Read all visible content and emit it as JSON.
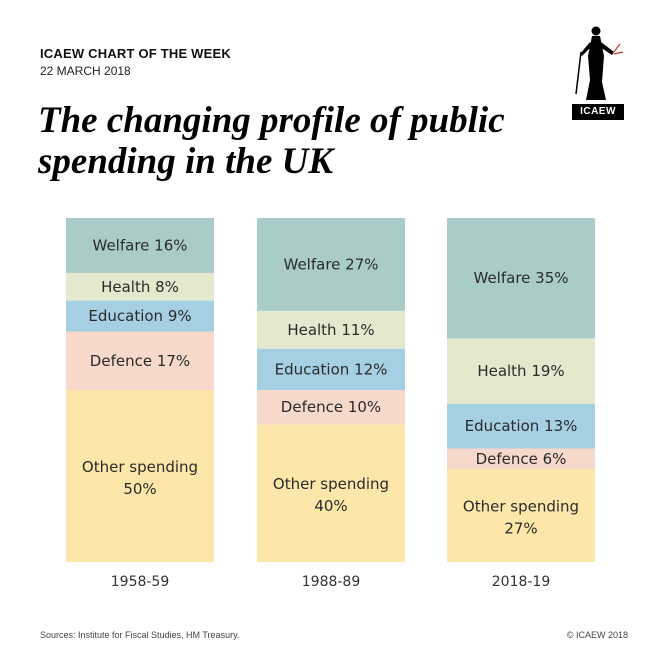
{
  "header": {
    "kicker": "ICAEW CHART OF THE WEEK",
    "date": "22 MARCH 2018",
    "title": "The changing profile of public spending in the UK"
  },
  "logo": {
    "text": "ICAEW",
    "icon": "justice-figure-icon"
  },
  "footer": {
    "source": "Sources: Institute for Fiscal Studies, HM Treasury.",
    "copyright": "© ICAEW 2018"
  },
  "colors": {
    "Welfare": "#a9cccb",
    "Health": "#e4e8cd",
    "Education": "#a5cfe3",
    "Defence": "#f6d9cb",
    "Other spending": "#fde6aa"
  },
  "chart_data": {
    "type": "bar",
    "stacked": true,
    "categories": [
      "1958-59",
      "1988-89",
      "2018-19"
    ],
    "series": [
      {
        "name": "Other spending",
        "values": [
          50,
          40,
          27
        ]
      },
      {
        "name": "Defence",
        "values": [
          17,
          10,
          6
        ]
      },
      {
        "name": "Education",
        "values": [
          9,
          12,
          13
        ]
      },
      {
        "name": "Health",
        "values": [
          8,
          11,
          19
        ]
      },
      {
        "name": "Welfare",
        "values": [
          16,
          27,
          35
        ]
      }
    ],
    "ylim": [
      0,
      100
    ],
    "grid": false,
    "legend": "none"
  }
}
